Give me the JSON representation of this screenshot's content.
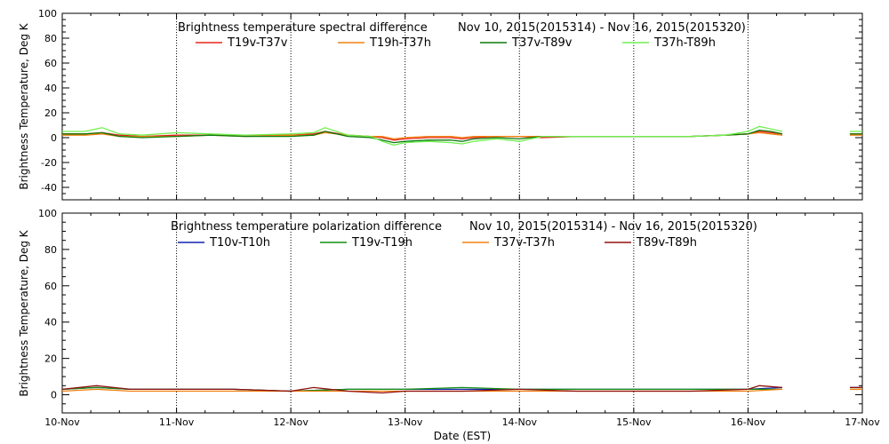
{
  "chart_data": [
    {
      "type": "line",
      "title": "Brightness temperature spectral difference",
      "subtitle": "Nov 10, 2015(2015314) - Nov 16, 2015(2015320)",
      "xlabel": "",
      "ylabel": "Brightness Temperature, Deg K",
      "ylim": [
        -50,
        100
      ],
      "yticks": [
        -40,
        -20,
        0,
        20,
        40,
        60,
        80,
        100
      ],
      "xlim": [
        "2015-11-10",
        "2015-11-17"
      ],
      "grid": "vertical dotted at each day",
      "legend_position": "top",
      "series": [
        {
          "name": "T19v-T37v",
          "color": "#e8241c",
          "x": [
            10.0,
            10.2,
            10.35,
            10.5,
            10.7,
            11.0,
            11.3,
            11.6,
            12.0,
            12.2,
            12.3,
            12.5,
            12.7,
            12.8,
            12.9,
            13.0,
            13.2,
            13.4,
            13.5,
            13.6,
            13.8,
            14.0,
            14.2,
            14.5,
            15.0,
            15.5,
            15.8,
            16.0,
            16.1,
            16.2,
            16.3
          ],
          "y": [
            3,
            3,
            4,
            2,
            1,
            2,
            2,
            2,
            2,
            3,
            5,
            2,
            1,
            0,
            -2,
            -1,
            0,
            0,
            -1,
            0,
            1,
            1,
            0,
            1,
            1,
            1,
            2,
            3,
            5,
            4,
            3
          ]
        },
        {
          "name": "T19h-T37h",
          "color": "#f08010",
          "x": [
            10.0,
            10.2,
            10.35,
            10.5,
            10.7,
            11.0,
            11.3,
            11.6,
            12.0,
            12.2,
            12.3,
            12.5,
            12.7,
            12.8,
            12.9,
            13.0,
            13.2,
            13.4,
            13.5,
            13.6,
            13.8,
            14.0,
            14.2,
            14.5,
            15.0,
            15.5,
            15.8,
            16.0,
            16.1,
            16.2,
            16.3
          ],
          "y": [
            2,
            2,
            3,
            1,
            1,
            1,
            2,
            1,
            2,
            2,
            4,
            2,
            1,
            1,
            -1,
            0,
            1,
            1,
            0,
            1,
            1,
            1,
            1,
            1,
            1,
            1,
            2,
            3,
            4,
            3,
            2
          ]
        },
        {
          "name": "T37v-T89v",
          "color": "#0a7a0a",
          "x": [
            10.0,
            10.2,
            10.35,
            10.5,
            10.7,
            11.0,
            11.3,
            11.6,
            12.0,
            12.2,
            12.3,
            12.5,
            12.7,
            12.8,
            12.9,
            13.0,
            13.2,
            13.4,
            13.5,
            13.6,
            13.8,
            14.0,
            14.2,
            14.5,
            15.0,
            15.5,
            15.8,
            16.0,
            16.1,
            16.2,
            16.3
          ],
          "y": [
            3,
            3,
            4,
            1,
            0,
            1,
            2,
            1,
            1,
            2,
            5,
            1,
            0,
            -2,
            -4,
            -3,
            -2,
            -2,
            -3,
            -1,
            0,
            -1,
            1,
            1,
            1,
            1,
            2,
            3,
            6,
            5,
            3
          ]
        },
        {
          "name": "T37h-T89h",
          "color": "#70f050",
          "x": [
            10.0,
            10.2,
            10.35,
            10.5,
            10.7,
            11.0,
            11.3,
            11.6,
            12.0,
            12.2,
            12.3,
            12.5,
            12.7,
            12.8,
            12.9,
            13.0,
            13.2,
            13.4,
            13.5,
            13.6,
            13.8,
            14.0,
            14.2,
            14.5,
            15.0,
            15.5,
            15.8,
            16.0,
            16.1,
            16.2,
            16.3
          ],
          "y": [
            5,
            5,
            8,
            3,
            2,
            4,
            3,
            2,
            3,
            4,
            8,
            2,
            1,
            -3,
            -6,
            -4,
            -3,
            -4,
            -5,
            -3,
            -1,
            -3,
            1,
            1,
            1,
            1,
            2,
            5,
            9,
            7,
            5
          ]
        }
      ]
    },
    {
      "type": "line",
      "title": "Brightness temperature polarization difference",
      "subtitle": "Nov 10, 2015(2015314) - Nov 16, 2015(2015320)",
      "xlabel": "Date (EST)",
      "ylabel": "Brightness Temperature, Deg K",
      "ylim": [
        -10,
        100
      ],
      "yticks": [
        0,
        20,
        40,
        60,
        80,
        100
      ],
      "xlim": [
        "2015-11-10",
        "2015-11-17"
      ],
      "xticks": [
        "10-Nov",
        "11-Nov",
        "12-Nov",
        "13-Nov",
        "14-Nov",
        "15-Nov",
        "16-Nov",
        "17-Nov"
      ],
      "grid": "vertical dotted at each day",
      "legend_position": "top",
      "series": [
        {
          "name": "T10v-T10h",
          "color": "#1020b0",
          "x": [
            10.0,
            10.3,
            10.6,
            11.0,
            11.5,
            12.0,
            12.5,
            13.0,
            13.5,
            14.0,
            14.5,
            15.0,
            15.5,
            16.0,
            16.3
          ],
          "y": [
            3,
            4,
            3,
            3,
            3,
            2,
            3,
            3,
            3,
            3,
            3,
            3,
            3,
            3,
            4
          ]
        },
        {
          "name": "T19v-T19h",
          "color": "#109010",
          "x": [
            10.0,
            10.3,
            10.6,
            11.0,
            11.5,
            12.0,
            12.5,
            13.0,
            13.5,
            14.0,
            14.5,
            15.0,
            15.5,
            16.0,
            16.3
          ],
          "y": [
            3,
            4,
            3,
            3,
            3,
            2,
            3,
            3,
            4,
            3,
            3,
            3,
            3,
            3,
            3
          ]
        },
        {
          "name": "T37v-T37h",
          "color": "#f08010",
          "x": [
            10.0,
            10.3,
            10.6,
            11.0,
            11.5,
            12.0,
            12.5,
            13.0,
            13.5,
            14.0,
            14.5,
            15.0,
            15.5,
            16.0,
            16.3
          ],
          "y": [
            2,
            3,
            2,
            2,
            2,
            2,
            2,
            2,
            2,
            2,
            2,
            2,
            2,
            2,
            3
          ]
        },
        {
          "name": "T89v-T89h",
          "color": "#901010",
          "x": [
            10.0,
            10.3,
            10.6,
            11.0,
            11.5,
            12.0,
            12.2,
            12.5,
            12.8,
            13.0,
            13.5,
            14.0,
            14.5,
            15.0,
            15.5,
            16.0,
            16.1,
            16.3
          ],
          "y": [
            3,
            5,
            3,
            3,
            3,
            2,
            4,
            2,
            1,
            2,
            2,
            3,
            2,
            2,
            2,
            3,
            5,
            4
          ]
        }
      ]
    }
  ]
}
